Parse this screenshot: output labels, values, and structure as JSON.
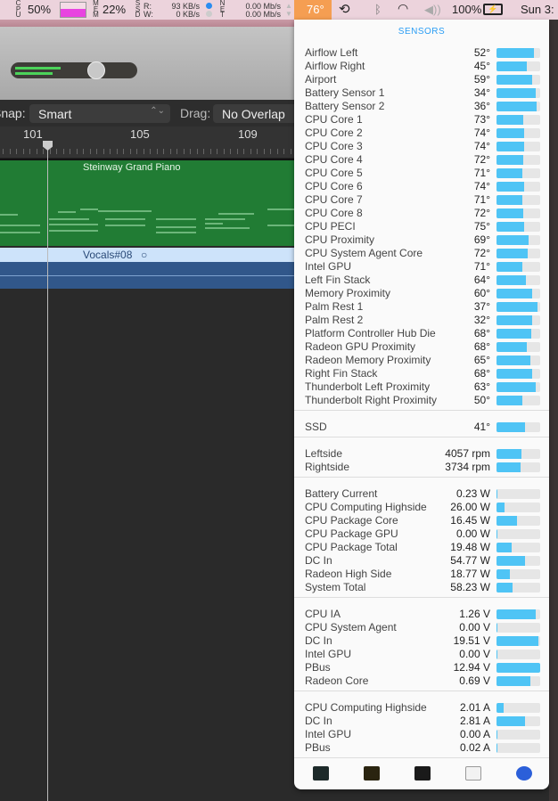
{
  "menubar": {
    "cpu_label": "CPU",
    "cpu_pct": "50%",
    "mem_label": "MEM",
    "mem_pct": "22%",
    "mem_fill": 0.55,
    "ssd_label": "SSD",
    "read_label": "R:",
    "write_label": "W:",
    "read_val": "93 KB/s",
    "write_val": "0 KB/s",
    "net_label": "NET",
    "net_up": "0.00 Mb/s",
    "net_down": "0.00 Mb/s",
    "temp": "76°",
    "battery": "100%",
    "clock": "Sun 3:"
  },
  "daw": {
    "snap_label": "Snap:",
    "snap_value": "Smart",
    "drag_label": "Drag:",
    "drag_value": "No Overlap",
    "ruler": [
      "101",
      "105",
      "109"
    ],
    "track1": "Steinway Grand Piano",
    "track2": "Vocals#08"
  },
  "popup": {
    "title": "SENSORS",
    "groups": [
      [
        [
          "Airflow Left",
          "52°",
          0.86
        ],
        [
          "Airflow Right",
          "45°",
          0.7
        ],
        [
          "Airport",
          "59°",
          0.82
        ],
        [
          "Battery Sensor 1",
          "34°",
          0.9
        ],
        [
          "Battery Sensor 2",
          "36°",
          0.92
        ],
        [
          "CPU Core 1",
          "73°",
          0.62
        ],
        [
          "CPU Core 2",
          "74°",
          0.64
        ],
        [
          "CPU Core 3",
          "74°",
          0.64
        ],
        [
          "CPU Core 4",
          "72°",
          0.62
        ],
        [
          "CPU Core 5",
          "71°",
          0.6
        ],
        [
          "CPU Core 6",
          "74°",
          0.64
        ],
        [
          "CPU Core 7",
          "71°",
          0.6
        ],
        [
          "CPU Core 8",
          "72°",
          0.62
        ],
        [
          "CPU PECI",
          "75°",
          0.64
        ],
        [
          "CPU Proximity",
          "69°",
          0.74
        ],
        [
          "CPU System Agent Core",
          "72°",
          0.72
        ],
        [
          "Intel GPU",
          "71°",
          0.6
        ],
        [
          "Left Fin Stack",
          "64°",
          0.68
        ],
        [
          "Memory Proximity",
          "60°",
          0.82
        ],
        [
          "Palm Rest 1",
          "37°",
          0.94
        ],
        [
          "Palm Rest 2",
          "32°",
          0.82
        ],
        [
          "Platform Controller Hub Die",
          "68°",
          0.8
        ],
        [
          "Radeon GPU Proximity",
          "68°",
          0.7
        ],
        [
          "Radeon Memory Proximity",
          "65°",
          0.78
        ],
        [
          "Right Fin Stack",
          "68°",
          0.82
        ],
        [
          "Thunderbolt Left Proximity",
          "63°",
          0.9
        ],
        [
          "Thunderbolt Right Proximity",
          "50°",
          0.6
        ]
      ],
      [
        [
          "SSD",
          "41°",
          0.66
        ]
      ],
      [
        [
          "Leftside",
          "4057 rpm",
          0.58
        ],
        [
          "Rightside",
          "3734 rpm",
          0.56
        ]
      ],
      [
        [
          "Battery Current",
          "0.23 W",
          0.02
        ],
        [
          "CPU Computing Highside",
          "26.00 W",
          0.18
        ],
        [
          "CPU Package Core",
          "16.45 W",
          0.46
        ],
        [
          "CPU Package GPU",
          "0.00 W",
          0.01
        ],
        [
          "CPU Package Total",
          "19.48 W",
          0.34
        ],
        [
          "DC In",
          "54.77 W",
          0.66
        ],
        [
          "Radeon High Side",
          "18.77 W",
          0.3
        ],
        [
          "System Total",
          "58.23 W",
          0.36
        ]
      ],
      [
        [
          "CPU IA",
          "1.26 V",
          0.9
        ],
        [
          "CPU System Agent",
          "0.00 V",
          0.01
        ],
        [
          "DC In",
          "19.51 V",
          0.96
        ],
        [
          "Intel GPU",
          "0.00 V",
          0.01
        ],
        [
          "PBus",
          "12.94 V",
          1.0
        ],
        [
          "Radeon Core",
          "0.69 V",
          0.78
        ]
      ],
      [
        [
          "CPU Computing Highside",
          "2.01 A",
          0.16
        ],
        [
          "DC In",
          "2.81 A",
          0.66
        ],
        [
          "Intel GPU",
          "0.00 A",
          0.01
        ],
        [
          "PBus",
          "0.02 A",
          0.02
        ]
      ]
    ],
    "toolbar": [
      "activity-monitor-icon",
      "console-icon",
      "terminal-icon",
      "system-information-icon",
      "istat-menus-icon"
    ]
  }
}
